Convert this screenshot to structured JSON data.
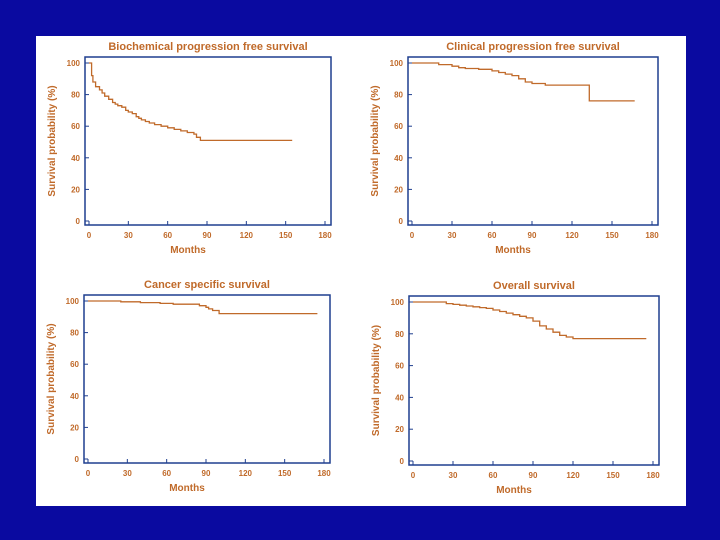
{
  "colors": {
    "background": "#0a0aa0",
    "panel": "#ffffff",
    "axis_frame": "#1f3f8f",
    "text": "#c06a2a",
    "curve": "#c06a2a"
  },
  "chart_data": [
    {
      "type": "line",
      "title": "Biochemical progression free survival",
      "xlabel": "Months",
      "ylabel": "Survival probability (%)",
      "xlim": [
        0,
        180
      ],
      "ylim": [
        0,
        100
      ],
      "xticks": [
        "0",
        "30",
        "60",
        "90",
        "120",
        "150",
        "180"
      ],
      "yticks": [
        "0",
        "20",
        "40",
        "60",
        "80",
        "100"
      ],
      "series": [
        {
          "name": "Biochemical progression free survival",
          "step": true,
          "x": [
            0,
            2,
            3,
            5,
            8,
            10,
            12,
            15,
            18,
            20,
            22,
            25,
            28,
            30,
            33,
            36,
            38,
            40,
            43,
            46,
            50,
            55,
            60,
            65,
            70,
            75,
            80,
            82,
            85,
            155
          ],
          "y": [
            100,
            92,
            88,
            85,
            83,
            81,
            79,
            77,
            75,
            74,
            73,
            72,
            70,
            69,
            68,
            66,
            65,
            64,
            63,
            62,
            61,
            60,
            59,
            58,
            57,
            56,
            55,
            53,
            51,
            51
          ]
        }
      ]
    },
    {
      "type": "line",
      "title": "Clinical progression free survival",
      "xlabel": "Months",
      "ylabel": "Survival probability (%)",
      "xlim": [
        0,
        180
      ],
      "ylim": [
        0,
        100
      ],
      "xticks": [
        "0",
        "30",
        "60",
        "90",
        "120",
        "150",
        "180"
      ],
      "yticks": [
        "0",
        "20",
        "40",
        "60",
        "80",
        "100"
      ],
      "series": [
        {
          "name": "Clinical progression free survival",
          "step": true,
          "x": [
            0,
            20,
            30,
            35,
            40,
            50,
            60,
            65,
            70,
            75,
            80,
            85,
            90,
            100,
            110,
            125,
            133,
            167
          ],
          "y": [
            100,
            99,
            98,
            97,
            96.5,
            96,
            95,
            94,
            93,
            92,
            90,
            88,
            87,
            86,
            86,
            86,
            76,
            76
          ]
        }
      ]
    },
    {
      "type": "line",
      "title": "Cancer specific survival",
      "xlabel": "Months",
      "ylabel": "Survival probability (%)",
      "xlim": [
        0,
        180
      ],
      "ylim": [
        0,
        100
      ],
      "xticks": [
        "0",
        "30",
        "60",
        "90",
        "120",
        "150",
        "180"
      ],
      "yticks": [
        "0",
        "20",
        "40",
        "60",
        "80",
        "100"
      ],
      "series": [
        {
          "name": "Cancer specific survival",
          "step": true,
          "x": [
            0,
            25,
            40,
            55,
            65,
            85,
            90,
            92,
            95,
            100,
            175
          ],
          "y": [
            100,
            99.5,
            99,
            98.5,
            98,
            97,
            96,
            95,
            94,
            92,
            92
          ]
        }
      ]
    },
    {
      "type": "line",
      "title": "Overall survival",
      "xlabel": "Months",
      "ylabel": "Survival probability (%)",
      "xlim": [
        0,
        180
      ],
      "ylim": [
        0,
        100
      ],
      "xticks": [
        "0",
        "30",
        "60",
        "90",
        "120",
        "150",
        "180"
      ],
      "yticks": [
        "0",
        "20",
        "40",
        "60",
        "80",
        "100"
      ],
      "series": [
        {
          "name": "Overall survival",
          "step": true,
          "x": [
            0,
            25,
            30,
            35,
            40,
            45,
            50,
            55,
            60,
            65,
            70,
            75,
            80,
            85,
            90,
            95,
            100,
            105,
            110,
            115,
            120,
            175
          ],
          "y": [
            100,
            99,
            98.5,
            98,
            97.5,
            97,
            96.5,
            96,
            95,
            94,
            93,
            92,
            91,
            90,
            88,
            85,
            83,
            81,
            79,
            78,
            77,
            77
          ]
        }
      ]
    }
  ]
}
